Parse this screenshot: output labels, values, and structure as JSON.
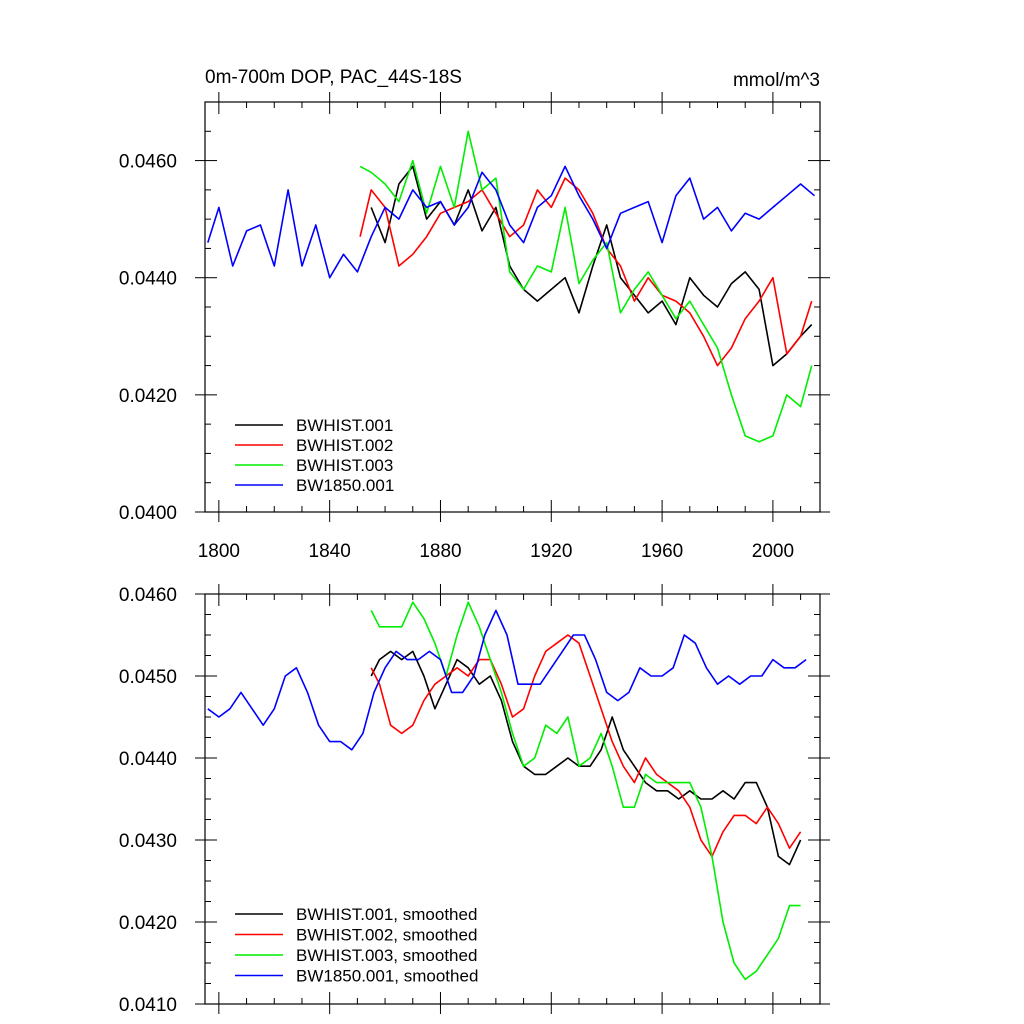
{
  "chart_data": [
    {
      "type": "line",
      "title_left": "0m-700m DOP, PAC_44S-18S",
      "title_right": "mmol/m^3",
      "xlim": [
        1795,
        2017
      ],
      "ylim": [
        0.04,
        0.047
      ],
      "x_ticks": [
        1800,
        1840,
        1880,
        1920,
        1960,
        2000
      ],
      "x_tick_labels": [
        "1800",
        "1840",
        "1880",
        "1920",
        "1960",
        "2000"
      ],
      "y_ticks": [
        0.04,
        0.042,
        0.044,
        0.046
      ],
      "y_tick_labels": [
        "0.0400",
        "0.0420",
        "0.0440",
        "0.0460"
      ],
      "legend": [
        "BWHIST.001",
        "BWHIST.002",
        "BWHIST.003",
        "BW1850.001"
      ],
      "legend_position": "bottom-left",
      "series": [
        {
          "name": "BWHIST.001",
          "color": "#000000",
          "x": [
            1855,
            1860,
            1865,
            1870,
            1875,
            1880,
            1885,
            1890,
            1895,
            1900,
            1905,
            1910,
            1915,
            1920,
            1925,
            1930,
            1935,
            1940,
            1945,
            1950,
            1955,
            1960,
            1965,
            1970,
            1975,
            1980,
            1985,
            1990,
            1995,
            2000,
            2005,
            2010,
            2014
          ],
          "y": [
            0.0452,
            0.0446,
            0.0456,
            0.0459,
            0.045,
            0.0453,
            0.0449,
            0.0455,
            0.0448,
            0.0452,
            0.0442,
            0.0438,
            0.0436,
            0.0438,
            0.044,
            0.0434,
            0.0442,
            0.0449,
            0.044,
            0.0437,
            0.0434,
            0.0436,
            0.0432,
            0.044,
            0.0437,
            0.0435,
            0.0439,
            0.0441,
            0.0438,
            0.0425,
            0.0427,
            0.043,
            0.0432
          ]
        },
        {
          "name": "BWHIST.002",
          "color": "#ff0000",
          "x": [
            1851,
            1855,
            1860,
            1865,
            1870,
            1875,
            1880,
            1885,
            1890,
            1895,
            1900,
            1905,
            1910,
            1915,
            1920,
            1925,
            1930,
            1935,
            1940,
            1945,
            1950,
            1955,
            1960,
            1965,
            1970,
            1975,
            1980,
            1985,
            1990,
            1995,
            2000,
            2005,
            2010,
            2014
          ],
          "y": [
            0.0447,
            0.0455,
            0.0452,
            0.0442,
            0.0444,
            0.0447,
            0.0451,
            0.0452,
            0.0453,
            0.0455,
            0.0451,
            0.0447,
            0.0449,
            0.0455,
            0.0452,
            0.0457,
            0.0455,
            0.0451,
            0.0445,
            0.0442,
            0.0436,
            0.044,
            0.0437,
            0.0436,
            0.0434,
            0.043,
            0.0425,
            0.0428,
            0.0433,
            0.0436,
            0.044,
            0.0427,
            0.043,
            0.0436
          ]
        },
        {
          "name": "BWHIST.003",
          "color": "#00ee00",
          "x": [
            1851,
            1855,
            1860,
            1865,
            1870,
            1875,
            1880,
            1885,
            1890,
            1895,
            1900,
            1905,
            1910,
            1915,
            1920,
            1925,
            1930,
            1935,
            1940,
            1945,
            1950,
            1955,
            1960,
            1965,
            1970,
            1975,
            1980,
            1985,
            1990,
            1995,
            2000,
            2005,
            2010,
            2014
          ],
          "y": [
            0.0459,
            0.0458,
            0.0456,
            0.0453,
            0.046,
            0.0451,
            0.0459,
            0.0452,
            0.0465,
            0.0455,
            0.0457,
            0.0441,
            0.0438,
            0.0442,
            0.0441,
            0.0452,
            0.0439,
            0.0443,
            0.0446,
            0.0434,
            0.0438,
            0.0441,
            0.0437,
            0.0433,
            0.0436,
            0.0432,
            0.0428,
            0.042,
            0.0413,
            0.0412,
            0.0413,
            0.042,
            0.0418,
            0.0425
          ]
        },
        {
          "name": "BW1850.001",
          "color": "#0000ff",
          "x": [
            1796,
            1800,
            1805,
            1810,
            1815,
            1820,
            1825,
            1830,
            1835,
            1840,
            1845,
            1850,
            1855,
            1860,
            1865,
            1870,
            1875,
            1880,
            1885,
            1890,
            1895,
            1900,
            1905,
            1910,
            1915,
            1920,
            1925,
            1930,
            1935,
            1940,
            1945,
            1950,
            1955,
            1960,
            1965,
            1970,
            1975,
            1980,
            1985,
            1990,
            1995,
            2000,
            2005,
            2010,
            2015
          ],
          "y": [
            0.0446,
            0.0452,
            0.0442,
            0.0448,
            0.0449,
            0.0442,
            0.0455,
            0.0442,
            0.0449,
            0.044,
            0.0444,
            0.0441,
            0.0447,
            0.0452,
            0.045,
            0.0455,
            0.0452,
            0.0453,
            0.0449,
            0.0452,
            0.0458,
            0.0455,
            0.0449,
            0.0446,
            0.0452,
            0.0454,
            0.0459,
            0.0454,
            0.045,
            0.0445,
            0.0451,
            0.0452,
            0.0453,
            0.0446,
            0.0454,
            0.0457,
            0.045,
            0.0452,
            0.0448,
            0.0451,
            0.045,
            0.0452,
            0.0454,
            0.0456,
            0.0454
          ]
        }
      ]
    },
    {
      "type": "line",
      "xlim": [
        1795,
        2017
      ],
      "ylim": [
        0.041,
        0.046
      ],
      "x_ticks": [
        1800,
        1840,
        1880,
        1920,
        1960,
        2000
      ],
      "y_ticks": [
        0.041,
        0.042,
        0.043,
        0.044,
        0.045,
        0.046
      ],
      "y_tick_labels": [
        "0.0410",
        "0.0420",
        "0.0430",
        "0.0440",
        "0.0450",
        "0.0460"
      ],
      "legend": [
        "BWHIST.001, smoothed",
        "BWHIST.002, smoothed",
        "BWHIST.003, smoothed",
        "BW1850.001, smoothed"
      ],
      "legend_position": "bottom-left",
      "series": [
        {
          "name": "BWHIST.001, smoothed",
          "color": "#000000",
          "x": [
            1855,
            1858,
            1862,
            1866,
            1870,
            1874,
            1878,
            1882,
            1886,
            1890,
            1894,
            1898,
            1902,
            1906,
            1910,
            1914,
            1918,
            1922,
            1926,
            1930,
            1934,
            1938,
            1942,
            1946,
            1950,
            1954,
            1958,
            1962,
            1966,
            1970,
            1974,
            1978,
            1982,
            1986,
            1990,
            1994,
            1998,
            2002,
            2006,
            2010
          ],
          "y": [
            0.045,
            0.0452,
            0.0453,
            0.0452,
            0.0453,
            0.045,
            0.0446,
            0.0449,
            0.0452,
            0.0451,
            0.0449,
            0.045,
            0.0447,
            0.0442,
            0.0439,
            0.0438,
            0.0438,
            0.0439,
            0.044,
            0.0439,
            0.0439,
            0.0441,
            0.0445,
            0.0441,
            0.0439,
            0.0437,
            0.0436,
            0.0436,
            0.0435,
            0.0436,
            0.0435,
            0.0435,
            0.0436,
            0.0435,
            0.0437,
            0.0437,
            0.0434,
            0.0428,
            0.0427,
            0.043
          ]
        },
        {
          "name": "BWHIST.002, smoothed",
          "color": "#ff0000",
          "x": [
            1855,
            1858,
            1862,
            1866,
            1870,
            1874,
            1878,
            1882,
            1886,
            1890,
            1894,
            1898,
            1902,
            1906,
            1910,
            1914,
            1918,
            1922,
            1926,
            1930,
            1934,
            1938,
            1942,
            1946,
            1950,
            1954,
            1958,
            1962,
            1966,
            1970,
            1974,
            1978,
            1982,
            1986,
            1990,
            1994,
            1998,
            2002,
            2006,
            2010
          ],
          "y": [
            0.0451,
            0.0449,
            0.0444,
            0.0443,
            0.0444,
            0.0447,
            0.0449,
            0.045,
            0.0451,
            0.045,
            0.0452,
            0.0452,
            0.0449,
            0.0445,
            0.0446,
            0.045,
            0.0453,
            0.0454,
            0.0455,
            0.0454,
            0.045,
            0.0446,
            0.0442,
            0.0439,
            0.0437,
            0.044,
            0.0438,
            0.0437,
            0.0436,
            0.0434,
            0.043,
            0.0428,
            0.0431,
            0.0433,
            0.0433,
            0.0432,
            0.0434,
            0.0432,
            0.0429,
            0.0431
          ]
        },
        {
          "name": "BWHIST.003, smoothed",
          "color": "#00ee00",
          "x": [
            1855,
            1858,
            1862,
            1866,
            1870,
            1874,
            1878,
            1882,
            1886,
            1890,
            1894,
            1898,
            1902,
            1906,
            1910,
            1914,
            1918,
            1922,
            1926,
            1930,
            1934,
            1938,
            1942,
            1946,
            1950,
            1954,
            1958,
            1962,
            1966,
            1970,
            1974,
            1978,
            1982,
            1986,
            1990,
            1994,
            1998,
            2002,
            2006,
            2010
          ],
          "y": [
            0.0458,
            0.0456,
            0.0456,
            0.0456,
            0.0459,
            0.0457,
            0.0454,
            0.045,
            0.0455,
            0.0459,
            0.0456,
            0.0452,
            0.0448,
            0.0443,
            0.0439,
            0.044,
            0.0444,
            0.0443,
            0.0445,
            0.0439,
            0.044,
            0.0443,
            0.0439,
            0.0434,
            0.0434,
            0.0438,
            0.0437,
            0.0437,
            0.0437,
            0.0437,
            0.0434,
            0.0428,
            0.042,
            0.0415,
            0.0413,
            0.0414,
            0.0416,
            0.0418,
            0.0422,
            0.0422
          ]
        },
        {
          "name": "BW1850.001, smoothed",
          "color": "#0000ff",
          "x": [
            1796,
            1800,
            1804,
            1808,
            1812,
            1816,
            1820,
            1824,
            1828,
            1832,
            1836,
            1840,
            1844,
            1848,
            1852,
            1856,
            1860,
            1864,
            1868,
            1872,
            1876,
            1880,
            1884,
            1888,
            1892,
            1896,
            1900,
            1904,
            1908,
            1912,
            1916,
            1920,
            1924,
            1928,
            1932,
            1936,
            1940,
            1944,
            1948,
            1952,
            1956,
            1960,
            1964,
            1968,
            1972,
            1976,
            1980,
            1984,
            1988,
            1992,
            1996,
            2000,
            2004,
            2008,
            2012
          ],
          "y": [
            0.0446,
            0.0445,
            0.0446,
            0.0448,
            0.0446,
            0.0444,
            0.0446,
            0.045,
            0.0451,
            0.0448,
            0.0444,
            0.0442,
            0.0442,
            0.0441,
            0.0443,
            0.0448,
            0.0451,
            0.0453,
            0.0452,
            0.0452,
            0.0453,
            0.0452,
            0.0448,
            0.0448,
            0.045,
            0.0455,
            0.0458,
            0.0455,
            0.0449,
            0.0449,
            0.0449,
            0.0451,
            0.0453,
            0.0455,
            0.0455,
            0.0452,
            0.0448,
            0.0447,
            0.0448,
            0.0451,
            0.045,
            0.045,
            0.0451,
            0.0455,
            0.0454,
            0.0451,
            0.0449,
            0.045,
            0.0449,
            0.045,
            0.045,
            0.0452,
            0.0451,
            0.0451,
            0.0452
          ]
        }
      ]
    }
  ]
}
